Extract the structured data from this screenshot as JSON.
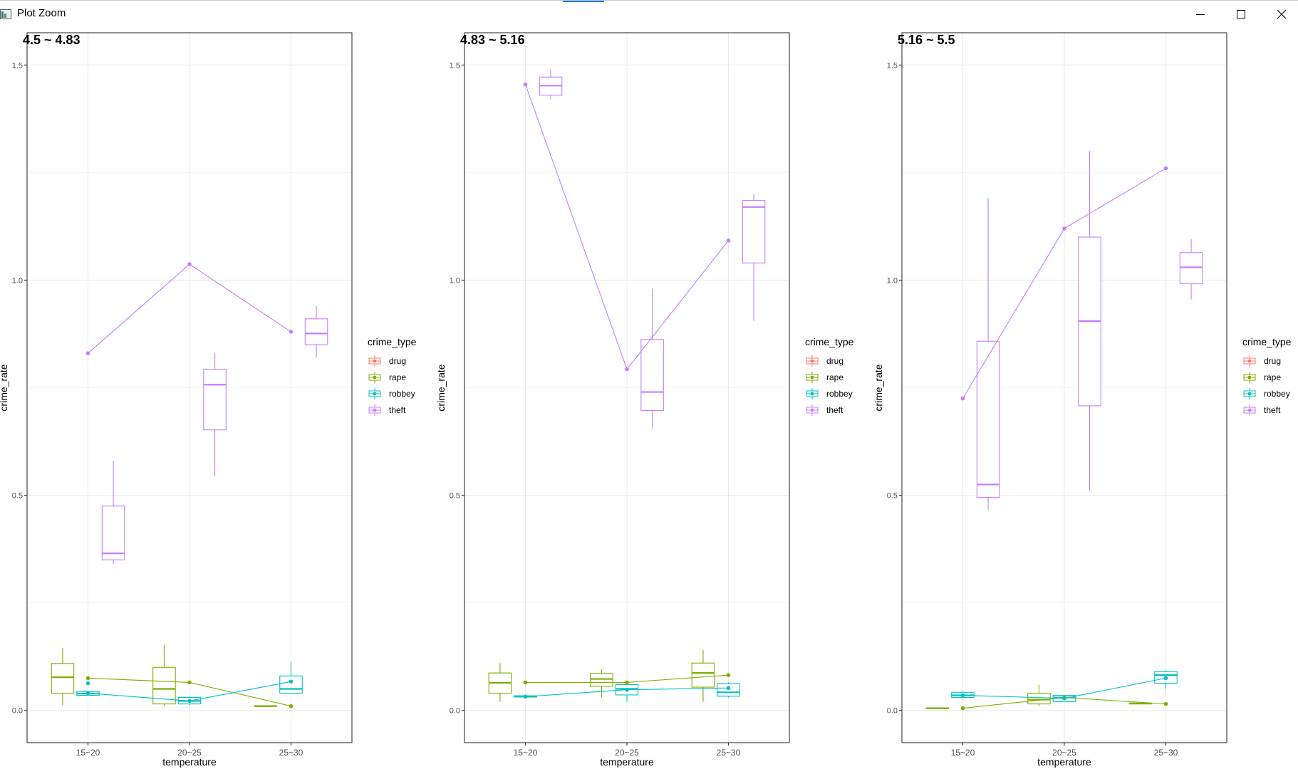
{
  "window": {
    "title": "Plot Zoom",
    "icon": "r-plot-window-icon",
    "controls": {
      "minimize": "minimize-icon",
      "maximize": "maximize-icon",
      "close": "close-icon"
    },
    "accent_color": "#0078d7"
  },
  "colors": {
    "drug": "#F8766D",
    "rape": "#7CAE00",
    "robbey": "#00BFC4",
    "theft": "#C77CFF",
    "panel_border": "#333333",
    "grid": "#ebebeb",
    "axis_text": "#4d4d4d"
  },
  "chart_data": [
    {
      "type": "box",
      "title": "4.5 ~ 4.83",
      "xlabel": "temperature",
      "ylabel": "crime_rate",
      "categories": [
        "15~20",
        "20~25",
        "25~30"
      ],
      "ylim": [
        -0.075,
        1.575
      ],
      "yticks": [
        0.0,
        0.5,
        1.0,
        1.5
      ],
      "ytick_labels": [
        "0.0",
        "0.5",
        "1.0",
        "1.5"
      ],
      "grid": true,
      "legend": {
        "title": "crime_type",
        "entries": [
          "drug",
          "rape",
          "robbey",
          "theft"
        ],
        "position": "right"
      },
      "boxes": [
        {
          "series": "rape",
          "category": "15~20",
          "min": 0.012,
          "q1": 0.04,
          "median": 0.077,
          "q3": 0.109,
          "max": 0.145
        },
        {
          "series": "robbey",
          "category": "15~20",
          "min": 0.035,
          "q1": 0.035,
          "median": 0.039,
          "q3": 0.044,
          "max": 0.044
        },
        {
          "series": "theft",
          "category": "15~20",
          "min": 0.34,
          "q1": 0.35,
          "median": 0.365,
          "q3": 0.475,
          "max": 0.58
        },
        {
          "series": "rape",
          "category": "20~25",
          "min": 0.01,
          "q1": 0.015,
          "median": 0.05,
          "q3": 0.1,
          "max": 0.152
        },
        {
          "series": "robbey",
          "category": "20~25",
          "min": 0.012,
          "q1": 0.015,
          "median": 0.022,
          "q3": 0.03,
          "max": 0.033
        },
        {
          "series": "theft",
          "category": "20~25",
          "min": 0.545,
          "q1": 0.652,
          "median": 0.757,
          "q3": 0.793,
          "max": 0.83
        },
        {
          "series": "rape",
          "category": "25~30",
          "min": 0.01,
          "q1": 0.01,
          "median": 0.01,
          "q3": 0.01,
          "max": 0.01
        },
        {
          "series": "robbey",
          "category": "25~30",
          "min": 0.04,
          "q1": 0.04,
          "median": 0.05,
          "q3": 0.08,
          "max": 0.113
        },
        {
          "series": "theft",
          "category": "25~30",
          "min": 0.82,
          "q1": 0.85,
          "median": 0.876,
          "q3": 0.91,
          "max": 0.94
        }
      ],
      "series": [
        {
          "name": "rape",
          "values": [
            0.075,
            0.065,
            0.01
          ]
        },
        {
          "name": "robbey",
          "values": [
            0.04,
            0.022,
            0.067
          ]
        },
        {
          "name": "theft",
          "values": [
            0.83,
            1.037,
            0.88
          ]
        }
      ],
      "extra_points": [
        {
          "series": "robbey",
          "category": "15~20",
          "y": 0.063
        }
      ]
    },
    {
      "type": "box",
      "title": "4.83 ~ 5.16",
      "xlabel": "temperature",
      "ylabel": "crime_rate",
      "categories": [
        "15~20",
        "20~25",
        "25~30"
      ],
      "ylim": [
        -0.075,
        1.575
      ],
      "yticks": [
        0.0,
        0.5,
        1.0,
        1.5
      ],
      "ytick_labels": [
        "0.0",
        "0.5",
        "1.0",
        "1.5"
      ],
      "grid": true,
      "legend": {
        "title": "crime_type",
        "entries": [
          "drug",
          "rape",
          "robbey",
          "theft"
        ],
        "position": "right"
      },
      "boxes": [
        {
          "series": "rape",
          "category": "15~20",
          "min": 0.02,
          "q1": 0.04,
          "median": 0.064,
          "q3": 0.087,
          "max": 0.11
        },
        {
          "series": "robbey",
          "category": "15~20",
          "min": 0.03,
          "q1": 0.031,
          "median": 0.032,
          "q3": 0.034,
          "max": 0.035
        },
        {
          "series": "theft",
          "category": "15~20",
          "min": 1.42,
          "q1": 1.43,
          "median": 1.452,
          "q3": 1.472,
          "max": 1.49
        },
        {
          "series": "rape",
          "category": "20~25",
          "min": 0.03,
          "q1": 0.056,
          "median": 0.073,
          "q3": 0.086,
          "max": 0.095
        },
        {
          "series": "robbey",
          "category": "20~25",
          "min": 0.02,
          "q1": 0.036,
          "median": 0.05,
          "q3": 0.06,
          "max": 0.065
        },
        {
          "series": "theft",
          "category": "20~25",
          "min": 0.656,
          "q1": 0.697,
          "median": 0.74,
          "q3": 0.862,
          "max": 0.98
        },
        {
          "series": "rape",
          "category": "25~30",
          "min": 0.02,
          "q1": 0.054,
          "median": 0.087,
          "q3": 0.11,
          "max": 0.14
        },
        {
          "series": "robbey",
          "category": "25~30",
          "min": 0.03,
          "q1": 0.033,
          "median": 0.042,
          "q3": 0.062,
          "max": 0.065
        },
        {
          "series": "theft",
          "category": "25~30",
          "min": 0.905,
          "q1": 1.04,
          "median": 1.17,
          "q3": 1.185,
          "max": 1.2
        }
      ],
      "series": [
        {
          "name": "rape",
          "values": [
            0.065,
            0.065,
            0.082
          ]
        },
        {
          "name": "robbey",
          "values": [
            0.032,
            0.048,
            0.052
          ]
        },
        {
          "name": "theft",
          "values": [
            1.455,
            0.793,
            1.092
          ]
        }
      ],
      "extra_points": []
    },
    {
      "type": "box",
      "title": "5.16 ~ 5.5",
      "xlabel": "temperature",
      "ylabel": "crime_rate",
      "categories": [
        "15~20",
        "20~25",
        "25~30"
      ],
      "ylim": [
        -0.075,
        1.575
      ],
      "yticks": [
        0.0,
        0.5,
        1.0,
        1.5
      ],
      "ytick_labels": [
        "0.0",
        "0.5",
        "1.0",
        "1.5"
      ],
      "grid": true,
      "legend": {
        "title": "crime_type",
        "entries": [
          "drug",
          "rape",
          "robbey",
          "theft"
        ],
        "position": "right"
      },
      "boxes": [
        {
          "series": "rape",
          "category": "15~20",
          "min": 0.003,
          "q1": 0.004,
          "median": 0.005,
          "q3": 0.006,
          "max": 0.007
        },
        {
          "series": "robbey",
          "category": "15~20",
          "min": 0.028,
          "q1": 0.03,
          "median": 0.035,
          "q3": 0.042,
          "max": 0.045
        },
        {
          "series": "theft",
          "category": "15~20",
          "min": 0.467,
          "q1": 0.495,
          "median": 0.525,
          "q3": 0.858,
          "max": 1.19
        },
        {
          "series": "rape",
          "category": "20~25",
          "min": 0.01,
          "q1": 0.015,
          "median": 0.025,
          "q3": 0.04,
          "max": 0.06
        },
        {
          "series": "robbey",
          "category": "20~25",
          "min": 0.02,
          "q1": 0.02,
          "median": 0.03,
          "q3": 0.035,
          "max": 0.035
        },
        {
          "series": "theft",
          "category": "20~25",
          "min": 0.51,
          "q1": 0.708,
          "median": 0.905,
          "q3": 1.1,
          "max": 1.3
        },
        {
          "series": "rape",
          "category": "25~30",
          "min": 0.015,
          "q1": 0.015,
          "median": 0.016,
          "q3": 0.017,
          "max": 0.017
        },
        {
          "series": "robbey",
          "category": "25~30",
          "min": 0.05,
          "q1": 0.063,
          "median": 0.082,
          "q3": 0.09,
          "max": 0.093
        },
        {
          "series": "theft",
          "category": "25~30",
          "min": 0.955,
          "q1": 0.992,
          "median": 1.03,
          "q3": 1.064,
          "max": 1.095
        }
      ],
      "series": [
        {
          "name": "rape",
          "values": [
            0.005,
            0.03,
            0.015
          ]
        },
        {
          "name": "robbey",
          "values": [
            0.035,
            0.028,
            0.075
          ]
        },
        {
          "name": "theft",
          "values": [
            0.725,
            1.12,
            1.26
          ]
        }
      ],
      "extra_points": []
    }
  ]
}
